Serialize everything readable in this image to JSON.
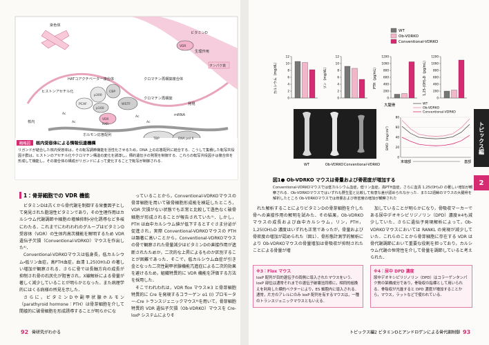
{
  "left_page": {
    "figure": {
      "labels": [
        "ビタミンD",
        "生理作用",
        "タンパク質",
        "染色体",
        "HATコアクチベーター複合体",
        "ヒストンアセチル化",
        "p300",
        "CBP",
        "PCAF",
        "p160",
        "クロマチン再構築複合体",
        "WSTF",
        "クロマチン再構築",
        "VDR",
        "RXR",
        "核内",
        "ホルモン応答配列",
        "発現",
        "mRNA",
        "TBP",
        "RNA pol II",
        "Ac"
      ],
      "caption_label": "概略図",
      "caption_title": "核内受容体による情報伝達機構",
      "caption_text": "リガンドが結合した核内受容体は，その転写調節機能を活性化させるため，DNA 上の応答配列に結合する．こうして集積した転写共役因子群は，ヒストンのアセチル化やクロマチン構造の変化を誘導し，標的遺伝子の発現を制御する．これらの転写共役因子は複合体を形成して機能し，その複合体の構成がリガンドによって変化することで転写が制御される．"
    },
    "section_heading": "1：骨芽細胞での VDR 機能",
    "columns": [
      [
        "ビタミンDは古くから骨代謝を制御する栄養因子として発見された脂溶性ビタミンであり，その生理作用はカルシウム代謝調節や細胞の増殖抑制・分化誘導など多岐にわたる．これまでにわれわれのグループはビタミンD受容体（VDR）の生体内高次機能を解明するため VDR 遺伝子欠損（Conventional-VDRKO）マウスを作出した⁴⁾．",
        "Conventional-VDRKOマウスは低身長，低カルシウム・低リン血症，高PTH血症，血清 1,25(OH)₂D の著しい増加が観察される．さらに骨では長軸方向の成長が抑制され骨の石灰化が阻害され，X線解析による骨量が著しく減少していることが明らかとなった．また病理学的にはくる病様の所見を示した．",
        "さらに，ビタミンDや副甲状腺ホルモン（parathyroid hormone：PTH）は骨芽細胞を介して間接的に破骨細胞を形成誘導することが明らかにな"
      ],
      [
        "っていることから，Conventional-VDRKOマウスの骨芽細胞を用いて破骨細胞形成能を検証したところ，VDR 欠損がない状態でも正常と比較して遜色なく破骨細胞が形成されることが報告されていた⁵⁾．しかし，PTH は血中カルシウム値が低下するとすぐさま分泌が促進され，実際 Conventional-VDRKOマウスの PTH は顕著に高いことから，Conventional-VDRKOマウスの骨で観察された骨量減少はビタミンDの直接作用が遮断されたためか，二次的な上昇によるものか区別することが困難であった．そこで，低カルシウム血症が引き金となった二次性副甲状腺機能亢進症による二次的効果を避けるため，組織特異的に VDR 機能を評価する方法を採用した．",
        "そこでわれわれは，VDR flox マウス※3 と骨芽細胞特異的に Cre を発現するコラーゲン α1 (I) プロモーター-Cre トランスジェニックマウス⁶⁾を用いて，骨芽細胞特異的 VDR 遺伝子欠損（Ob-VDRKO）マウスを Cre-loxP システムによりそ"
      ]
    ],
    "footer": {
      "page": "92",
      "title": "骨研究がわかる"
    }
  },
  "right_page": {
    "figure1": {
      "legend": [
        {
          "name": "WT",
          "color": "#767676"
        },
        {
          "name": "Ob-VDRKO",
          "color": "#f2b6cb"
        },
        {
          "name": "Conventional-VDRKO",
          "color": "#d62a73"
        }
      ],
      "bar_charts": [
        {
          "ylabel": "カルシウム（mg/dL）",
          "ylim": [
            0,
            12
          ],
          "yticks": [
            0,
            2,
            4,
            6,
            8,
            10,
            12
          ],
          "values": [
            10.6,
            10.3,
            8.2
          ]
        },
        {
          "ylabel": "リン（mg/dL）",
          "ylim": [
            0,
            12
          ],
          "yticks": [
            0,
            2,
            4,
            6,
            8,
            10,
            12
          ],
          "values": [
            9.2,
            8.6,
            5.4
          ]
        },
        {
          "ylabel": "PTH（pg/mL）",
          "ylim": [
            0,
            1200
          ],
          "yticks": [
            0,
            200,
            400,
            600,
            800,
            1000,
            1200
          ],
          "values": [
            110,
            130,
            1050
          ]
        },
        {
          "ylabel": "1,25-(OH)₂D（pg/mL）",
          "ylim": [
            0,
            1200
          ],
          "yticks": [
            0,
            200,
            400,
            600,
            800,
            1000,
            1200
          ],
          "values": [
            200,
            230,
            1100
          ]
        }
      ],
      "bone_labels": [
        "WT",
        "Ob-VDRKO",
        "Conventional-VDRKO"
      ],
      "bmd": {
        "title": "大腿骨",
        "ylabel": "BMD（mg/cm²）",
        "ylim": [
          0,
          80
        ],
        "yticks": [
          0,
          20,
          40,
          60,
          80
        ],
        "x_labels": [
          "末端部",
          "基部"
        ],
        "series": [
          {
            "name": "WT",
            "color": "#555555",
            "values": [
              62,
              48,
              40,
              38,
              37,
              38,
              41,
              50,
              66
            ]
          },
          {
            "name": "Ob-VDRKO",
            "color": "#e88aad",
            "values": [
              74,
              57,
              46,
              43,
              42,
              43,
              47,
              59,
              77
            ]
          },
          {
            "name": "Conventional-VDRKO",
            "color": "#d62a73",
            "values": [
              40,
              32,
              26,
              24,
              23,
              24,
              27,
              33,
              44
            ]
          }
        ]
      },
      "caption_title": "図1● Ob-VDRKO マウスは骨量および骨密度が増加する",
      "caption_text": "Conventional-VDRKOマウスでは低カルシウム血症，低リン血症，高PTH血症，さらに血清 1,25(OH)₂D の著しい増加が観察される．Ob-VDRKOマウスではいずれも野生型と比較して有意な差が認められなかった．また12週齢のマウスの大腿骨を解析したところ Ob-VDRKOマウスでは骨量および骨密度の増加が観察された"
    },
    "columns": [
      [
        "れた解析することによりビタミンDの骨芽細胞を介した骨への直接作用の解明を試みた．その結果，Ob-VDRKOマウスの成長および血中カルシウム，リン，PTH，1,25(OH)₂D 濃度はいずれも正常であったが，骨量および骨密度の増加が認められた（図1）．骨形態計測学的解析により Ob-VDRKOマウスの骨量増加は骨吸収が抑制されたことによる骨量が増"
      ],
      [
        "加していることが明らかになり，骨吸収マーカーである尿中デオキシピリジノリン（DPD）濃度※4も減少していた．さらに遺伝子発現解析によって，Ob-VDRKOマウスにおいては RANKL の発現が減少していた．これらのことから骨芽細胞に存在する VDR は骨代謝調節において重要な役割を担っており，カルシウム代謝の恒常性を介して骨量を調節していると考えられた．"
      ]
    ],
    "notes": [
      {
        "title": "※3：Flox マウス",
        "text": "loxP 配列が目的遺伝子の両側に導入されたマウスをいう．loxP 部位は通常それまでの遺伝子破壊法同様に，相同的組換えを利用した標的ベクターにより，ES 細胞内に導入される．通常，片方のアレルにのみ loxP 配列を有するマウスは，一種のトランスジェニックマウスともいえる．"
      },
      {
        "title": "※4：尿中 DPD 濃度",
        "text": "尿中デオキシピリジノリン（DPD）はコラーゲンタンパク質の架橋成分であり，骨吸収の指標として用いられる．骨吸収が亢進すると DPD 濃度が増加することから，マウス，ラットなどで使われている．"
      }
    ],
    "side_tab": {
      "label": "トピックス編",
      "number": "2"
    },
    "footer": {
      "title": "トピックス編2 ビタミンDとアンドロゲンによる骨代謝制御",
      "page": "93"
    }
  }
}
